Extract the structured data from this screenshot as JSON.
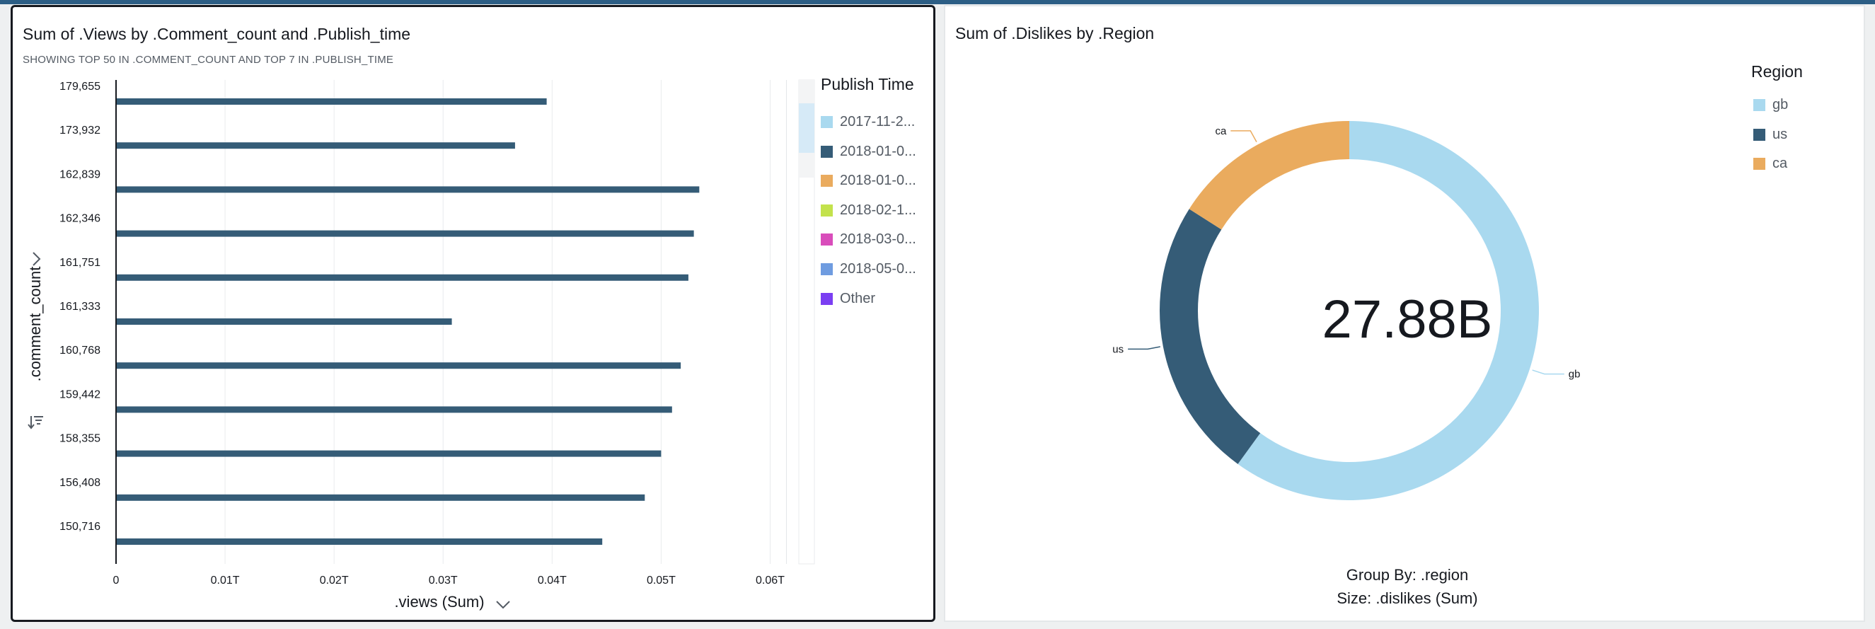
{
  "left_visual": {
    "title": "Sum of .Views by .Comment_count and .Publish_time",
    "subtitle": "SHOWING TOP 50 IN .COMMENT_COUNT AND TOP 7 IN .PUBLISH_TIME",
    "y_axis_label": ".comment_count",
    "x_axis_label": ".views (Sum)",
    "axis_chevron_icon": "chevron-down-icon",
    "y_expand_icon": "chevron-right-icon",
    "sort_icon": "sort-descending-icon"
  },
  "legend_left": {
    "title": "Publish Time",
    "items": [
      {
        "label": "2017-11-2...",
        "color": "#a9d9ef"
      },
      {
        "label": "2018-01-0...",
        "color": "#355c77"
      },
      {
        "label": "2018-01-0...",
        "color": "#eaab5e"
      },
      {
        "label": "2018-02-1...",
        "color": "#c3e24c"
      },
      {
        "label": "2018-03-0...",
        "color": "#d94dbb"
      },
      {
        "label": "2018-05-0...",
        "color": "#6f9ce0"
      },
      {
        "label": "Other",
        "color": "#7b3ff2"
      }
    ]
  },
  "right_visual": {
    "title": "Sum of .Dislikes by .Region",
    "center_total": "27.88B",
    "group_by_caption": "Group By: .region",
    "size_caption": "Size: .dislikes (Sum)"
  },
  "legend_right": {
    "title": "Region",
    "items": [
      {
        "label": "gb",
        "color": "#a9d9ef"
      },
      {
        "label": "us",
        "color": "#355c77"
      },
      {
        "label": "ca",
        "color": "#eaab5e"
      }
    ]
  },
  "chart_data": [
    {
      "type": "bar",
      "orientation": "horizontal",
      "title": "Sum of .Views by .Comment_count and .Publish_time",
      "subtitle": "SHOWING TOP 50 IN .COMMENT_COUNT AND TOP 7 IN .PUBLISH_TIME",
      "xlabel": ".views (Sum)",
      "ylabel": ".comment_count",
      "xlim": [
        0,
        0.0625
      ],
      "x_unit": "T",
      "x_ticks": [
        "0",
        "0.01T",
        "0.02T",
        "0.03T",
        "0.04T",
        "0.05T",
        "0.06T"
      ],
      "x_tick_values": [
        0,
        0.01,
        0.02,
        0.03,
        0.04,
        0.05,
        0.06
      ],
      "grid": "vertical",
      "legend_position": "right",
      "bar_color": "#355c77",
      "categories": [
        "179,655",
        "173,932",
        "162,839",
        "162,346",
        "161,751",
        "161,333",
        "160,768",
        "159,442",
        "158,355",
        "156,408",
        "150,716"
      ],
      "values": [
        0.0395,
        0.0366,
        0.0535,
        0.053,
        0.0525,
        0.0308,
        0.0518,
        0.051,
        0.05,
        0.0485,
        0.0446
      ]
    },
    {
      "type": "pie",
      "style": "donut",
      "title": "Sum of .Dislikes by .Region",
      "total_label": "27.88B",
      "slices": [
        {
          "label": "gb",
          "share": 0.6,
          "color": "#a9d9ef"
        },
        {
          "label": "us",
          "share": 0.24,
          "color": "#355c77"
        },
        {
          "label": "ca",
          "share": 0.16,
          "color": "#eaab5e"
        }
      ],
      "legend_position": "right"
    }
  ]
}
